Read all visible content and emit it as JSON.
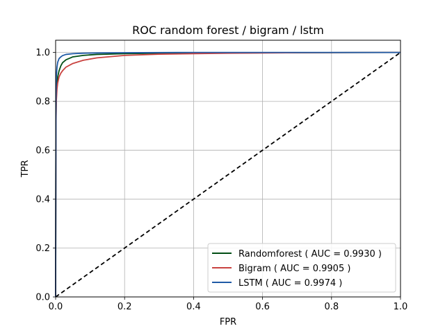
{
  "chart_data": {
    "type": "line",
    "title": "ROC random forest / bigram / lstm",
    "xlabel": "FPR",
    "ylabel": "TPR",
    "xlim": [
      0.0,
      1.0
    ],
    "ylim": [
      0.0,
      1.05
    ],
    "xticks": [
      "0.0",
      "0.2",
      "0.4",
      "0.6",
      "0.8",
      "1.0"
    ],
    "yticks": [
      "0.0",
      "0.2",
      "0.4",
      "0.6",
      "0.8",
      "1.0"
    ],
    "xtick_values": [
      0.0,
      0.2,
      0.4,
      0.6,
      0.8,
      1.0
    ],
    "ytick_values": [
      0.0,
      0.2,
      0.4,
      0.6,
      0.8,
      1.0
    ],
    "grid": true,
    "legend_position": "bottom-right",
    "series": [
      {
        "name": "Randomforest ( AUC = 0.9930 )",
        "color": "#004d13",
        "x": [
          0.0,
          0.001,
          0.002,
          0.004,
          0.006,
          0.01,
          0.015,
          0.02,
          0.03,
          0.05,
          0.08,
          0.12,
          0.2,
          0.3,
          0.5,
          0.7,
          1.0
        ],
        "y": [
          0.0,
          0.72,
          0.82,
          0.87,
          0.9,
          0.925,
          0.945,
          0.958,
          0.97,
          0.982,
          0.988,
          0.992,
          0.995,
          0.997,
          0.998,
          0.999,
          1.0
        ]
      },
      {
        "name": "Bigram ( AUC = 0.9905 )",
        "color": "#c9423f",
        "x": [
          0.0,
          0.001,
          0.002,
          0.004,
          0.006,
          0.01,
          0.015,
          0.02,
          0.03,
          0.05,
          0.08,
          0.12,
          0.2,
          0.3,
          0.5,
          0.7,
          1.0
        ],
        "y": [
          0.0,
          0.7,
          0.8,
          0.85,
          0.875,
          0.9,
          0.915,
          0.925,
          0.94,
          0.955,
          0.968,
          0.978,
          0.988,
          0.993,
          0.997,
          0.999,
          1.0
        ]
      },
      {
        "name": "LSTM ( AUC = 0.9974 )",
        "color": "#1f5aa6",
        "x": [
          0.0,
          0.001,
          0.002,
          0.004,
          0.006,
          0.01,
          0.015,
          0.02,
          0.03,
          0.05,
          0.08,
          0.12,
          0.2,
          0.4,
          1.0
        ],
        "y": [
          0.0,
          0.8,
          0.9,
          0.94,
          0.96,
          0.975,
          0.982,
          0.987,
          0.992,
          0.995,
          0.997,
          0.998,
          0.999,
          1.0,
          1.0
        ]
      }
    ],
    "reference_line": {
      "x": [
        0.0,
        1.0
      ],
      "y": [
        0.0,
        1.0
      ],
      "color": "#000000",
      "style": "dashed"
    }
  }
}
